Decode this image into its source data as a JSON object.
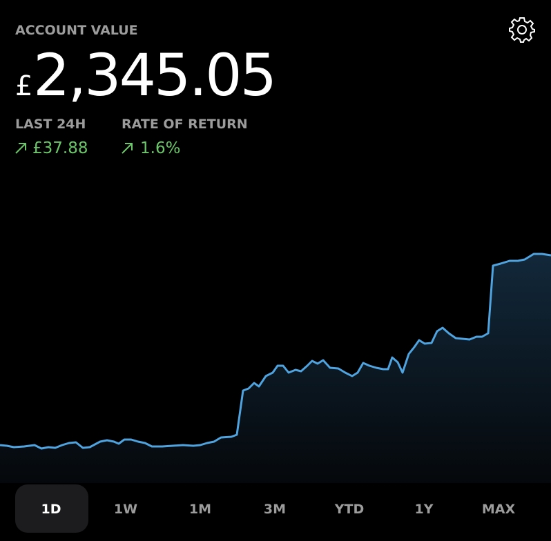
{
  "header": {
    "label": "ACCOUNT VALUE",
    "currency": "£",
    "amount": "2,345.05"
  },
  "stats": [
    {
      "label": "LAST 24H",
      "value": "£37.88"
    },
    {
      "label": "RATE OF RETURN",
      "value": "1.6%"
    }
  ],
  "chart_data": {
    "type": "area",
    "color": "#4fa3de",
    "x": [
      0,
      10,
      20,
      35,
      50,
      60,
      70,
      80,
      90,
      100,
      110,
      120,
      130,
      145,
      155,
      165,
      172,
      180,
      190,
      200,
      210,
      220,
      235,
      250,
      265,
      280,
      290,
      300,
      310,
      320,
      335,
      343,
      352,
      360,
      368,
      375,
      385,
      395,
      402,
      410,
      418,
      428,
      436,
      445,
      452,
      460,
      468,
      478,
      490,
      500,
      510,
      518,
      526,
      535,
      545,
      555,
      562,
      568,
      576,
      583,
      592,
      600,
      607,
      615,
      625,
      633,
      641,
      650,
      660,
      670,
      680,
      690,
      698,
      707,
      714,
      725,
      738,
      750,
      760,
      773,
      785,
      798
    ],
    "values": [
      55,
      54,
      52,
      53,
      55,
      50,
      52,
      51,
      55,
      58,
      59,
      51,
      52,
      60,
      62,
      60,
      57,
      63,
      63,
      60,
      58,
      53,
      53,
      54,
      55,
      54,
      55,
      58,
      60,
      66,
      67,
      70,
      134,
      137,
      145,
      140,
      155,
      160,
      170,
      170,
      160,
      164,
      162,
      170,
      177,
      173,
      178,
      167,
      166,
      160,
      155,
      160,
      174,
      170,
      167,
      165,
      165,
      182,
      175,
      160,
      187,
      197,
      207,
      202,
      203,
      220,
      225,
      217,
      210,
      209,
      208,
      212,
      212,
      217,
      315,
      318,
      322,
      322,
      324,
      332,
      332,
      330
    ],
    "xlim": [
      0,
      798
    ],
    "ylim": [
      0,
      340
    ]
  },
  "tabs": [
    "1D",
    "1W",
    "1M",
    "3M",
    "YTD",
    "1Y",
    "MAX"
  ],
  "selected_tab": 0
}
